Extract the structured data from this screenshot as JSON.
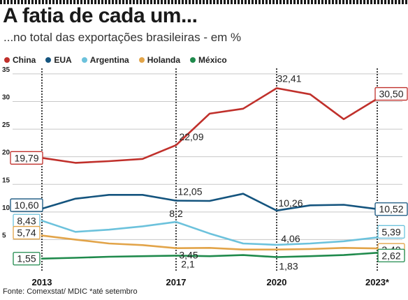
{
  "title": "A fatia de cada um...",
  "subtitle": "...no total das exportações brasileiras - em %",
  "source": "Fonte: Comexstat/ MDIC *até setembro",
  "chart_data": {
    "type": "line",
    "x": [
      2013,
      2014,
      2015,
      2016,
      2017,
      2018,
      2019,
      2020,
      2021,
      2022,
      2023
    ],
    "x_tick_labels": [
      "2013",
      "2017",
      "2020",
      "2023*"
    ],
    "x_tick_values": [
      2013,
      2017,
      2020,
      2023
    ],
    "y_ticks": [
      5,
      10,
      15,
      20,
      25,
      30,
      35
    ],
    "ylim": [
      0,
      36
    ],
    "grid": "horizontal",
    "legend_position": "top-left",
    "series": [
      {
        "name": "China",
        "color": "#c0302b",
        "values": [
          19.79,
          18.9,
          19.2,
          19.6,
          22.09,
          27.8,
          28.7,
          32.41,
          31.3,
          26.8,
          30.5
        ],
        "labels": [
          {
            "x": 2013,
            "text": "19,79",
            "boxed": true
          },
          {
            "x": 2017,
            "text": "22,09",
            "boxed": false
          },
          {
            "x": 2020,
            "text": "32,41",
            "boxed": false
          },
          {
            "x": 2023,
            "text": "30,50",
            "boxed": true
          }
        ]
      },
      {
        "name": "EUA",
        "color": "#14547e",
        "values": [
          10.6,
          12.4,
          13.1,
          13.1,
          12.05,
          12.0,
          13.3,
          10.26,
          11.2,
          11.3,
          10.52
        ],
        "labels": [
          {
            "x": 2013,
            "text": "10,60",
            "boxed": true
          },
          {
            "x": 2017,
            "text": "12,05",
            "boxed": false
          },
          {
            "x": 2020,
            "text": "10,26",
            "boxed": false
          },
          {
            "x": 2023,
            "text": "10,52",
            "boxed": true
          }
        ]
      },
      {
        "name": "Argentina",
        "color": "#6cc2dc",
        "values": [
          8.43,
          6.4,
          6.8,
          7.4,
          8.2,
          6.1,
          4.3,
          4.06,
          4.3,
          4.7,
          5.39
        ],
        "labels": [
          {
            "x": 2013,
            "text": "8,43",
            "boxed": true
          },
          {
            "x": 2017,
            "text": "8,2",
            "boxed": false
          },
          {
            "x": 2020,
            "text": "4,06",
            "boxed": false
          },
          {
            "x": 2023,
            "text": "5,39",
            "boxed": true
          }
        ]
      },
      {
        "name": "Holanda",
        "color": "#e2a449",
        "values": [
          5.74,
          5.0,
          4.3,
          4.0,
          3.45,
          3.5,
          3.2,
          3.2,
          3.3,
          3.5,
          3.4
        ],
        "labels": [
          {
            "x": 2013,
            "text": "5,74",
            "boxed": true
          },
          {
            "x": 2017,
            "text": "3,45",
            "boxed": false
          },
          {
            "x": 2023,
            "text": "3,40",
            "boxed": true
          }
        ]
      },
      {
        "name": "México",
        "color": "#1f8a4c",
        "values": [
          1.55,
          1.7,
          1.9,
          2.0,
          2.1,
          2.0,
          2.2,
          1.83,
          2.0,
          2.2,
          2.62
        ],
        "labels": [
          {
            "x": 2013,
            "text": "1,55",
            "boxed": true
          },
          {
            "x": 2017,
            "text": "2,1",
            "boxed": false
          },
          {
            "x": 2020,
            "text": "1,83",
            "boxed": false
          },
          {
            "x": 2023,
            "text": "2,62",
            "boxed": true
          }
        ]
      }
    ]
  }
}
